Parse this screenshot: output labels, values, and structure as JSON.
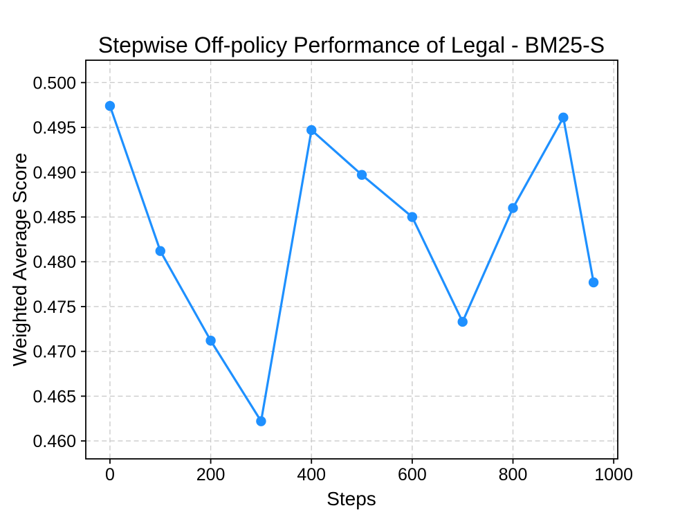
{
  "chart_data": {
    "type": "line",
    "title": "Stepwise Off-policy Performance of Legal - BM25-S",
    "xlabel": "Steps",
    "ylabel": "Weighted Average Score",
    "x": [
      0,
      100,
      200,
      300,
      400,
      500,
      600,
      700,
      800,
      900,
      960
    ],
    "series": [
      {
        "name": "weighted-average-score",
        "values": [
          0.4974,
          0.4812,
          0.4712,
          0.4622,
          0.4947,
          0.4897,
          0.485,
          0.4733,
          0.486,
          0.4961,
          0.4777
        ],
        "color": "#1E90FF",
        "marker": "circle"
      }
    ],
    "xticks": [
      0,
      200,
      400,
      600,
      800,
      1000
    ],
    "yticks": [
      0.46,
      0.465,
      0.47,
      0.475,
      0.48,
      0.485,
      0.49,
      0.495,
      0.5
    ],
    "ytick_decimals": 3,
    "xlim": [
      -48,
      1008
    ],
    "ylim": [
      0.458,
      0.5025
    ],
    "grid": true,
    "grid_style": "dashed",
    "legend": "none",
    "colors": {
      "line": "#1E90FF",
      "marker": "#1E90FF",
      "grid": "#cbcbcb",
      "axis": "#000000",
      "background": "#ffffff",
      "text": "#000000"
    }
  }
}
